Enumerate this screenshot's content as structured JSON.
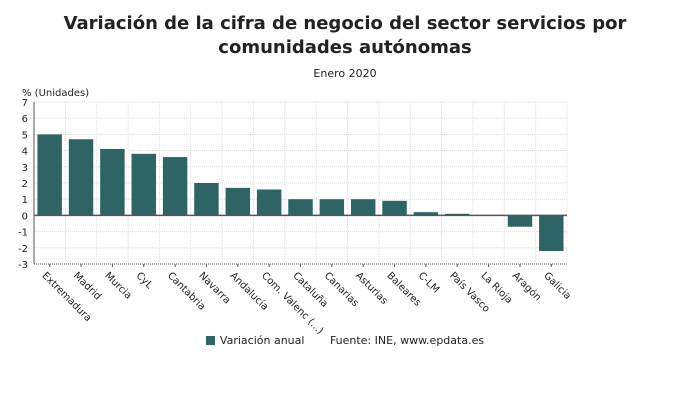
{
  "chart_data": {
    "type": "bar",
    "title": "Variación de la cifra de negocio del sector servicios por comunidades autónomas",
    "subtitle": "Enero 2020",
    "ylabel": "% (Unidades)",
    "xlabel": "",
    "ylim": [
      -3,
      7
    ],
    "yticks": [
      7,
      6,
      5,
      4,
      3,
      2,
      1,
      0,
      -1,
      -2,
      -3
    ],
    "grid": true,
    "legend_placement": "bottom",
    "color": "#2e6464",
    "categories": [
      "Extremadura",
      "Madrid",
      "Murcia",
      "CyL",
      "Cantabria",
      "Navarra",
      "Andalucía",
      "Com. Valenc (...)",
      "Cataluña",
      "Canarias",
      "Asturias",
      "Baleares",
      "C-LM",
      "País Vasco",
      "La Rioja",
      "Aragón",
      "Galicia"
    ],
    "series": [
      {
        "name": "Variación anual",
        "values": [
          5.0,
          4.7,
          4.1,
          3.8,
          3.6,
          2.0,
          1.7,
          1.6,
          1.0,
          1.0,
          1.0,
          0.9,
          0.2,
          0.1,
          0.0,
          -0.7,
          -2.2
        ]
      }
    ],
    "source": "Fuente: INE, www.epdata.es"
  }
}
